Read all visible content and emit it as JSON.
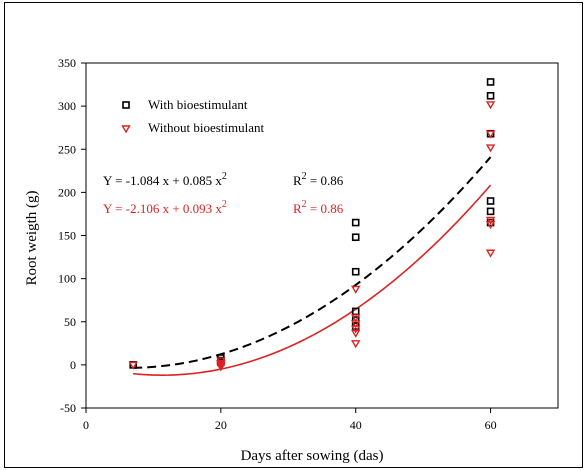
{
  "chart_data": {
    "type": "scatter",
    "xlabel": "Days after sowing (das)",
    "ylabel": "Root weigth (g)",
    "xlim": [
      0,
      70
    ],
    "ylim": [
      -50,
      350
    ],
    "x_ticks": [
      0,
      20,
      40,
      60
    ],
    "y_ticks": [
      -50,
      0,
      50,
      100,
      150,
      200,
      250,
      300,
      350
    ],
    "x_tick_labels": [
      "0",
      "20",
      "40",
      "60"
    ],
    "y_tick_labels": [
      "-50",
      "0",
      "50",
      "100",
      "150",
      "200",
      "250",
      "300",
      "350"
    ],
    "grid": false,
    "legend_position": "top-left",
    "series": [
      {
        "name": "With bioestimulant",
        "marker": "square",
        "color": "#000000",
        "points": [
          {
            "x": 7,
            "y": 0
          },
          {
            "x": 20,
            "y": 8
          },
          {
            "x": 20,
            "y": 5
          },
          {
            "x": 20,
            "y": 3
          },
          {
            "x": 40,
            "y": 165
          },
          {
            "x": 40,
            "y": 148
          },
          {
            "x": 40,
            "y": 108
          },
          {
            "x": 40,
            "y": 62
          },
          {
            "x": 40,
            "y": 52
          },
          {
            "x": 40,
            "y": 45
          },
          {
            "x": 60,
            "y": 328
          },
          {
            "x": 60,
            "y": 312
          },
          {
            "x": 60,
            "y": 268
          },
          {
            "x": 60,
            "y": 190
          },
          {
            "x": 60,
            "y": 178
          },
          {
            "x": 60,
            "y": 165
          }
        ],
        "fit": {
          "equation": "Y = -1.084 x + 0.085 x",
          "exponent": "2",
          "r2_label": "R",
          "r2_exp": "2",
          "r2_value": " = 0.86",
          "a": -1.084,
          "b": 0.085,
          "line": "dashed"
        }
      },
      {
        "name": "Without bioestimulant",
        "marker": "triangle-down",
        "color": "#dd2222",
        "points": [
          {
            "x": 7,
            "y": 0
          },
          {
            "x": 20,
            "y": 5
          },
          {
            "x": 20,
            "y": 2
          },
          {
            "x": 20,
            "y": 0
          },
          {
            "x": 20,
            "y": -2
          },
          {
            "x": 40,
            "y": 88
          },
          {
            "x": 40,
            "y": 55
          },
          {
            "x": 40,
            "y": 48
          },
          {
            "x": 40,
            "y": 42
          },
          {
            "x": 40,
            "y": 37
          },
          {
            "x": 40,
            "y": 25
          },
          {
            "x": 60,
            "y": 302
          },
          {
            "x": 60,
            "y": 268
          },
          {
            "x": 60,
            "y": 252
          },
          {
            "x": 60,
            "y": 168
          },
          {
            "x": 60,
            "y": 163
          },
          {
            "x": 60,
            "y": 130
          }
        ],
        "fit": {
          "equation": "Y = -2.106 x + 0.093 x",
          "exponent": "2",
          "r2_label": "R",
          "r2_exp": "2",
          "r2_value": " = 0.86",
          "a": -2.106,
          "b": 0.093,
          "line": "solid"
        }
      }
    ]
  }
}
